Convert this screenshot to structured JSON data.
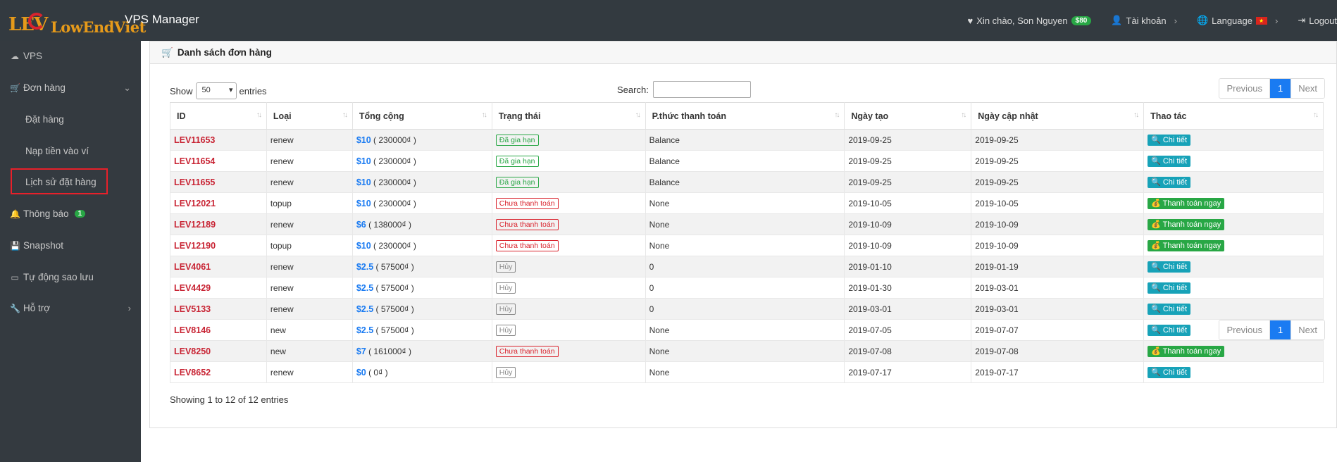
{
  "header": {
    "logo_lev": "LEV",
    "logo_text": "LowEndViet",
    "app_title": "VPS Manager",
    "greeting": "Xin chào, Son Nguyen",
    "balance": "$80",
    "account": "Tài khoản",
    "language": "Language",
    "logout": "Logout"
  },
  "sidebar": {
    "vps": "VPS",
    "orders": "Đơn hàng",
    "place_order": "Đặt hàng",
    "topup": "Nạp tiền vào ví",
    "order_history": "Lịch sử đặt hàng",
    "notifications": "Thông báo",
    "notif_badge": "1",
    "snapshot": "Snapshot",
    "auto_backup": "Tự động sao lưu",
    "support": "Hỗ trợ"
  },
  "panel": {
    "title": "Danh sách đơn hàng",
    "show_label": "Show",
    "page_size": "50",
    "entries_label": "entries",
    "search_label": "Search:",
    "prev": "Previous",
    "page": "1",
    "next": "Next",
    "info": "Showing 1 to 12 of 12 entries"
  },
  "columns": [
    "ID",
    "Loại",
    "Tổng cộng",
    "Trạng thái",
    "P.thức thanh toán",
    "Ngày tạo",
    "Ngày cập nhật",
    "Thao tác"
  ],
  "rows": [
    {
      "id": "LEV11653",
      "type": "renew",
      "usd": "$10",
      "vnd": "( 230000₫ )",
      "status": "Đã gia hạn",
      "status_kind": "green",
      "payment": "Balance",
      "created": "2019-09-25",
      "updated": "2019-09-25",
      "action": "Chi tiết",
      "action_kind": "detail"
    },
    {
      "id": "LEV11654",
      "type": "renew",
      "usd": "$10",
      "vnd": "( 230000₫ )",
      "status": "Đã gia hạn",
      "status_kind": "green",
      "payment": "Balance",
      "created": "2019-09-25",
      "updated": "2019-09-25",
      "action": "Chi tiết",
      "action_kind": "detail"
    },
    {
      "id": "LEV11655",
      "type": "renew",
      "usd": "$10",
      "vnd": "( 230000₫ )",
      "status": "Đã gia hạn",
      "status_kind": "green",
      "payment": "Balance",
      "created": "2019-09-25",
      "updated": "2019-09-25",
      "action": "Chi tiết",
      "action_kind": "detail"
    },
    {
      "id": "LEV12021",
      "type": "topup",
      "usd": "$10",
      "vnd": "( 230000₫ )",
      "status": "Chưa thanh toán",
      "status_kind": "red",
      "payment": "None",
      "created": "2019-10-05",
      "updated": "2019-10-05",
      "action": "Thanh toán ngay",
      "action_kind": "pay"
    },
    {
      "id": "LEV12189",
      "type": "renew",
      "usd": "$6",
      "vnd": "( 138000₫ )",
      "status": "Chưa thanh toán",
      "status_kind": "red",
      "payment": "None",
      "created": "2019-10-09",
      "updated": "2019-10-09",
      "action": "Thanh toán ngay",
      "action_kind": "pay"
    },
    {
      "id": "LEV12190",
      "type": "topup",
      "usd": "$10",
      "vnd": "( 230000₫ )",
      "status": "Chưa thanh toán",
      "status_kind": "red",
      "payment": "None",
      "created": "2019-10-09",
      "updated": "2019-10-09",
      "action": "Thanh toán ngay",
      "action_kind": "pay"
    },
    {
      "id": "LEV4061",
      "type": "renew",
      "usd": "$2.5",
      "vnd": "( 57500₫ )",
      "status": "Hủy",
      "status_kind": "grey",
      "payment": "0",
      "created": "2019-01-10",
      "updated": "2019-01-19",
      "action": "Chi tiết",
      "action_kind": "detail"
    },
    {
      "id": "LEV4429",
      "type": "renew",
      "usd": "$2.5",
      "vnd": "( 57500₫ )",
      "status": "Hủy",
      "status_kind": "grey",
      "payment": "0",
      "created": "2019-01-30",
      "updated": "2019-03-01",
      "action": "Chi tiết",
      "action_kind": "detail"
    },
    {
      "id": "LEV5133",
      "type": "renew",
      "usd": "$2.5",
      "vnd": "( 57500₫ )",
      "status": "Hủy",
      "status_kind": "grey",
      "payment": "0",
      "created": "2019-03-01",
      "updated": "2019-03-01",
      "action": "Chi tiết",
      "action_kind": "detail"
    },
    {
      "id": "LEV8146",
      "type": "new",
      "usd": "$2.5",
      "vnd": "( 57500₫ )",
      "status": "Hủy",
      "status_kind": "grey",
      "payment": "None",
      "created": "2019-07-05",
      "updated": "2019-07-07",
      "action": "Chi tiết",
      "action_kind": "detail"
    },
    {
      "id": "LEV8250",
      "type": "new",
      "usd": "$7",
      "vnd": "( 161000₫ )",
      "status": "Chưa thanh toán",
      "status_kind": "red",
      "payment": "None",
      "created": "2019-07-08",
      "updated": "2019-07-08",
      "action": "Thanh toán ngay",
      "action_kind": "pay"
    },
    {
      "id": "LEV8652",
      "type": "renew",
      "usd": "$0",
      "vnd": "( 0₫ )",
      "status": "Hủy",
      "status_kind": "grey",
      "payment": "None",
      "created": "2019-07-17",
      "updated": "2019-07-17",
      "action": "Chi tiết",
      "action_kind": "detail"
    }
  ]
}
